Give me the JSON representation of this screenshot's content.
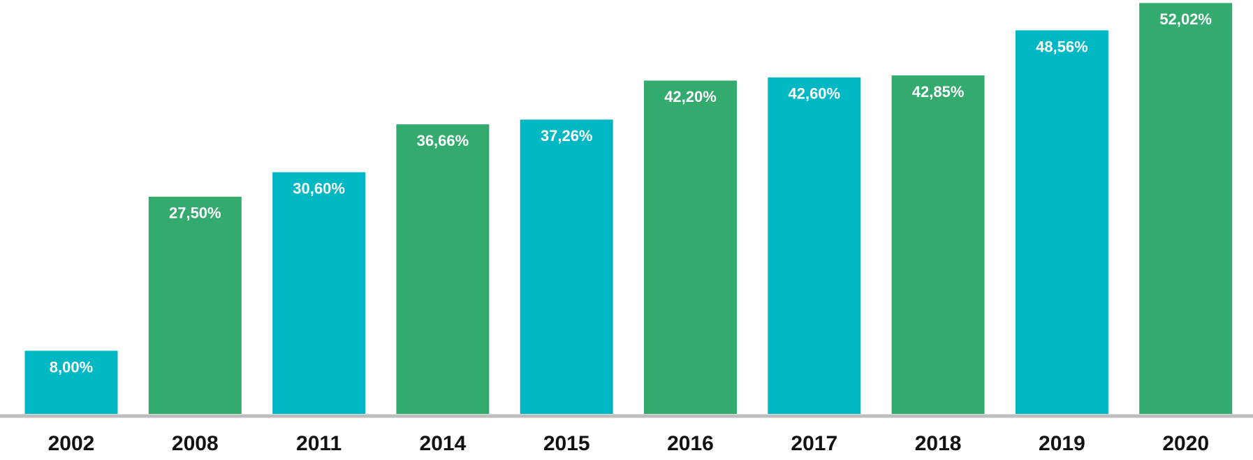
{
  "chart_data": {
    "type": "bar",
    "categories": [
      "2002",
      "2008",
      "2011",
      "2014",
      "2015",
      "2016",
      "2017",
      "2018",
      "2019",
      "2020"
    ],
    "values": [
      8,
      27.5,
      30.6,
      36.66,
      37.26,
      42.2,
      42.6,
      42.85,
      48.56,
      52.02
    ],
    "value_labels": [
      "8,00%",
      "27,50%",
      "30,60%",
      "36,66%",
      "37,26%",
      "42,20%",
      "42,60%",
      "42,85%",
      "48,56%",
      "52,02%"
    ],
    "colors": [
      "#00b8c4",
      "#33aa6e",
      "#00b8c4",
      "#33aa6e",
      "#00b8c4",
      "#33aa6e",
      "#00b8c4",
      "#33aa6e",
      "#00b8c4",
      "#33aa6e"
    ],
    "ylim": [
      0,
      52.4
    ]
  }
}
